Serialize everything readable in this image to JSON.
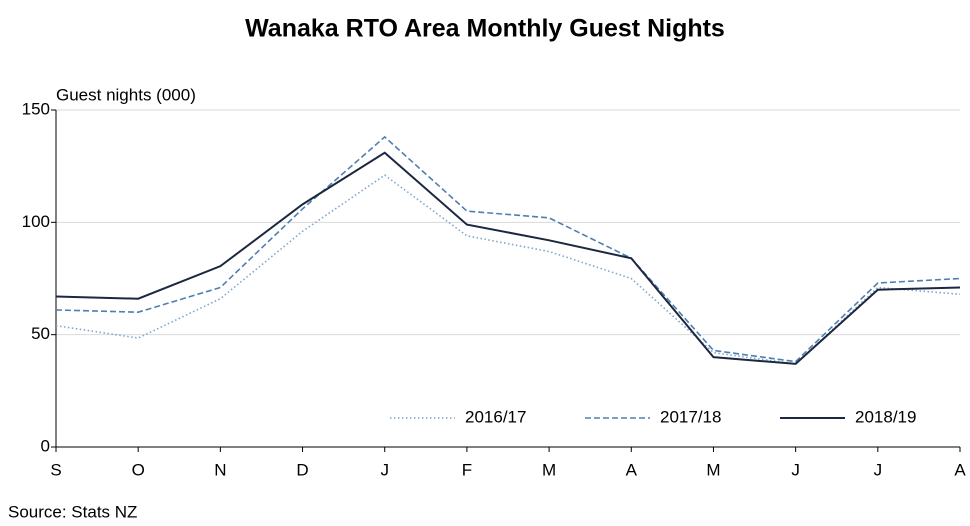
{
  "chart_data": {
    "type": "line",
    "title": "Wanaka  RTO Area Monthly Guest Nights",
    "y_label": "Guest nights (000)",
    "source": "Source: Stats NZ",
    "categories": [
      "S",
      "O",
      "N",
      "D",
      "J",
      "F",
      "M",
      "A",
      "M",
      "J",
      "J",
      "A"
    ],
    "series": [
      {
        "name": "2016/17",
        "color": "#7fa6cc",
        "dash": "dotted",
        "values": [
          54,
          48.5,
          66,
          96,
          121,
          94,
          87,
          75,
          42,
          37,
          71,
          68
        ]
      },
      {
        "name": "2017/18",
        "color": "#4f7fb0",
        "dash": "dashed",
        "values": [
          61,
          60,
          71,
          106,
          138,
          105,
          102,
          84,
          43,
          38,
          73,
          75
        ]
      },
      {
        "name": "2018/19",
        "color": "#1c2740",
        "dash": "solid",
        "values": [
          67,
          66,
          80.5,
          108,
          131,
          99,
          92,
          84,
          40,
          37,
          70,
          71
        ]
      }
    ],
    "ylim": [
      0,
      150
    ],
    "yticks": [
      0,
      50,
      100,
      150
    ],
    "grid": true,
    "legend": "bottom-right"
  }
}
